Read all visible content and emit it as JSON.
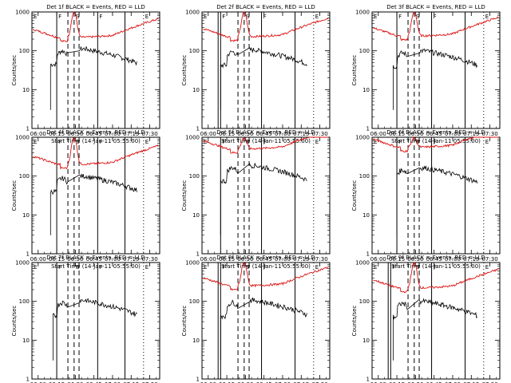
{
  "chart_data": {
    "type": "line",
    "ylabel": "Counts/sec",
    "xlabel": "Start Time (14-Jan-11 05:55:00)",
    "x_ticks": [
      "06:00",
      "06:15",
      "06:30",
      "06:45",
      "07:00",
      "07:15",
      "07:30"
    ],
    "y_ticks": [
      "1",
      "10",
      "100",
      "1000"
    ],
    "y_scale": "log",
    "ylim": [
      1,
      1000
    ],
    "x_range_min": [
      -5,
      98
    ],
    "series_colors": {
      "events": "#000000",
      "lld": "#dd1111"
    },
    "background_markers": [
      {
        "label": "E",
        "t": -5
      },
      {
        "label": "E",
        "t": 85
      }
    ],
    "panels": [
      {
        "title": "Det 1f BLACK = Events, RED = LLD",
        "markers": [
          {
            "label": "F",
            "t": 15
          },
          {
            "label": "S",
            "t": 29
          },
          {
            "label": "F",
            "t": 48
          }
        ],
        "solid_lines": [
          15,
          48,
          70
        ],
        "dashed_lines": [
          24,
          29,
          33
        ],
        "dotted_lines": [
          85
        ],
        "lld": {
          "base": 220,
          "peak": 1000,
          "peak_t": 29
        },
        "events": {
          "start_t": 10,
          "base": 90,
          "end_t": 80
        }
      },
      {
        "title": "Det 2f BLACK = Events, RED = LLD",
        "markers": [
          {
            "label": "F",
            "t": 10
          },
          {
            "label": "S",
            "t": 29
          },
          {
            "label": "F",
            "t": 43
          }
        ],
        "solid_lines": [
          8,
          10,
          43,
          70
        ],
        "dashed_lines": [
          24,
          29,
          33
        ],
        "dotted_lines": [
          85
        ],
        "lld": {
          "base": 230,
          "peak": 1000,
          "peak_t": 29
        },
        "events": {
          "start_t": 10,
          "base": 85,
          "end_t": 80
        }
      },
      {
        "title": "Det 3f BLACK = Events, RED = LLD",
        "markers": [
          {
            "label": "F",
            "t": 15
          },
          {
            "label": "S",
            "t": 29
          },
          {
            "label": "F",
            "t": 43
          }
        ],
        "solid_lines": [
          15,
          43,
          70
        ],
        "dashed_lines": [
          24,
          29,
          33
        ],
        "dotted_lines": [
          85
        ],
        "lld": {
          "base": 240,
          "peak": 1000,
          "peak_t": 29
        },
        "events": {
          "start_t": 12,
          "base": 80,
          "end_t": 80
        }
      },
      {
        "title": "Det 4f BLACK = Events, RED = LLD",
        "markers": [
          {
            "label": "F",
            "t": 15
          },
          {
            "label": "S",
            "t": 29
          },
          {
            "label": "F",
            "t": 48
          }
        ],
        "solid_lines": [
          15,
          48,
          70
        ],
        "dashed_lines": [
          24,
          29,
          33
        ],
        "dotted_lines": [
          85
        ],
        "lld": {
          "base": 200,
          "peak": 1000,
          "peak_t": 29
        },
        "events": {
          "start_t": 10,
          "base": 80,
          "end_t": 80
        }
      },
      {
        "title": "Det 5f BLACK = Events, RED = LLD",
        "markers": [
          {
            "label": "F",
            "t": 10
          },
          {
            "label": "S",
            "t": 29
          },
          {
            "label": "F",
            "t": 43
          }
        ],
        "solid_lines": [
          10,
          43,
          70
        ],
        "dashed_lines": [
          24,
          29,
          33
        ],
        "dotted_lines": [
          85
        ],
        "lld": {
          "base": 500,
          "peak": 1000,
          "peak_t": 29
        },
        "events": {
          "start_t": 10,
          "base": 150,
          "end_t": 80
        }
      },
      {
        "title": "Det 6f BLACK = Events, RED = LLD",
        "markers": [
          {
            "label": "F",
            "t": 15
          },
          {
            "label": "S",
            "t": 29
          },
          {
            "label": "F",
            "t": 43
          }
        ],
        "solid_lines": [
          15,
          43,
          70
        ],
        "dashed_lines": [
          24,
          29,
          33
        ],
        "dotted_lines": [
          85
        ],
        "lld": {
          "base": 550,
          "peak": 1000,
          "peak_t": 29
        },
        "events": {
          "start_t": 15,
          "base": 130,
          "end_t": 80
        }
      },
      {
        "title": "Det 7f BLACK = Events, RED = LLD",
        "markers": [
          {
            "label": "F",
            "t": 15
          },
          {
            "label": "S",
            "t": 29
          },
          {
            "label": "F",
            "t": 48
          }
        ],
        "solid_lines": [
          15,
          48,
          70
        ],
        "dashed_lines": [
          24,
          29,
          33
        ],
        "dotted_lines": [
          85
        ],
        "lld": null,
        "events": {
          "start_t": 12,
          "base": 85,
          "end_t": 80
        }
      },
      {
        "title": "Det 8f BLACK = Events, RED = LLD",
        "markers": [
          {
            "label": "F",
            "t": 10
          },
          {
            "label": "S",
            "t": 29
          },
          {
            "label": "F",
            "t": 43
          }
        ],
        "solid_lines": [
          8,
          10,
          43,
          70
        ],
        "dashed_lines": [
          24,
          29,
          33
        ],
        "dotted_lines": [
          85
        ],
        "lld": {
          "base": 250,
          "peak": 1000,
          "peak_t": 29
        },
        "events": {
          "start_t": 10,
          "base": 85,
          "end_t": 80
        }
      },
      {
        "title": "Det 9f BLACK = Events, RED = LLD",
        "markers": [
          {
            "label": "F",
            "t": 10
          },
          {
            "label": "S",
            "t": 29
          },
          {
            "label": "F",
            "t": 43
          }
        ],
        "solid_lines": [
          8,
          10,
          43,
          70
        ],
        "dashed_lines": [
          24,
          29,
          33
        ],
        "dotted_lines": [
          85
        ],
        "lld": {
          "base": 220,
          "peak": 1000,
          "peak_t": 29
        },
        "events": {
          "start_t": 12,
          "base": 80,
          "end_t": 80
        }
      }
    ]
  }
}
